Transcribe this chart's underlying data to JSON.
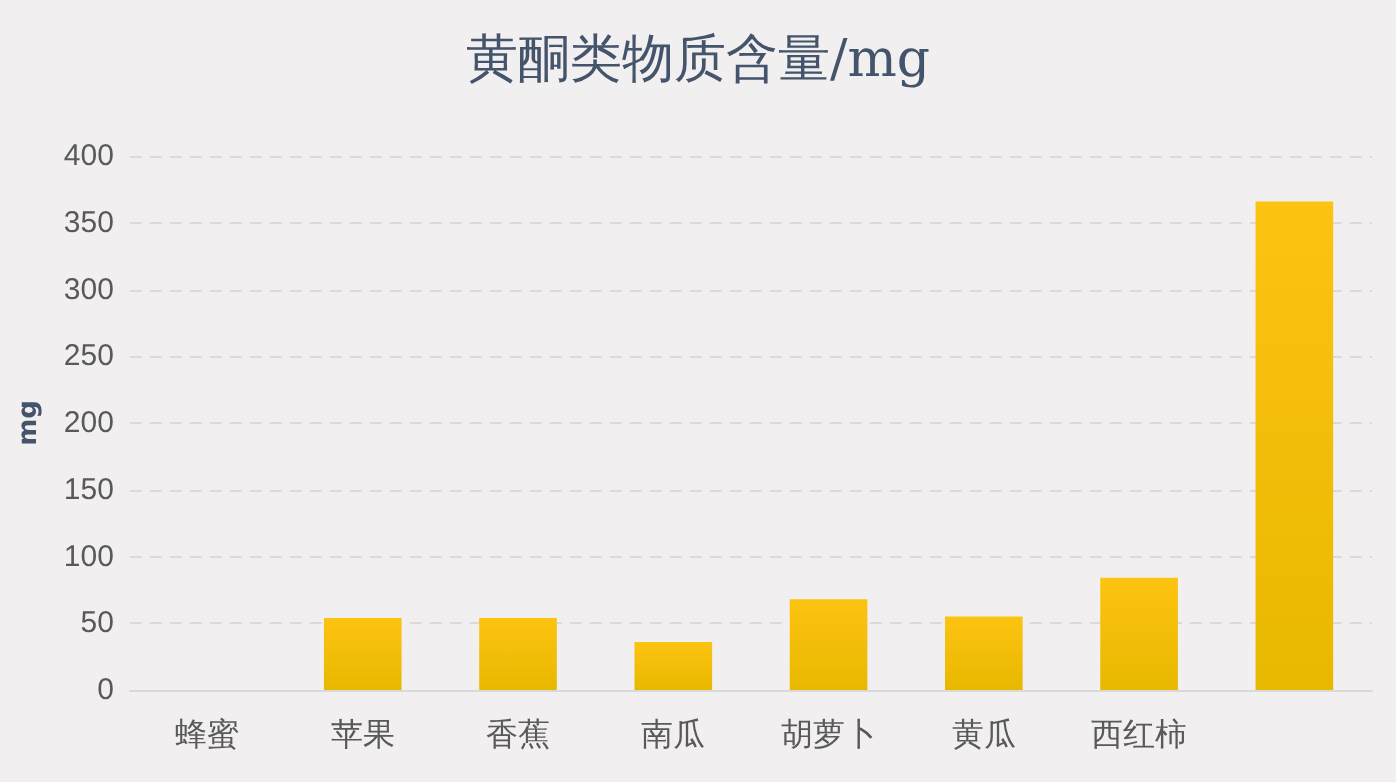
{
  "chart_data": {
    "type": "bar",
    "title": "黄酮类物质含量/mg",
    "ylabel": "mg",
    "categories": [
      "蜂蜜",
      "苹果",
      "香蕉",
      "南瓜",
      "胡萝卜",
      "黄瓜",
      "西红柿",
      null
    ],
    "values": [
      0,
      54,
      54,
      36,
      68,
      55,
      84,
      366
    ],
    "color": "#fdc311",
    "ylim": [
      0,
      400
    ],
    "yticks": [
      0,
      50,
      100,
      150,
      200,
      250,
      300,
      350,
      400
    ],
    "grid": "y"
  }
}
